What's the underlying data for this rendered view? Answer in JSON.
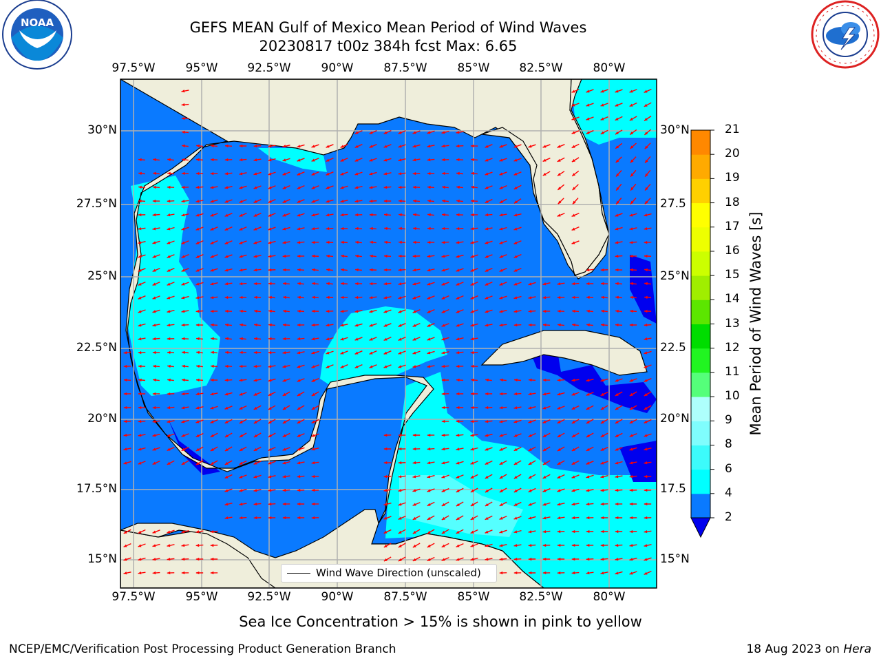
{
  "title_line1": "GEFS MEAN Gulf of Mexico Mean Period of Wind Waves",
  "title_line2": "20230817 t00z 384h fcst   Max: 6.65",
  "lon_labels": [
    "97.5°W",
    "95°W",
    "92.5°W",
    "90°W",
    "87.5°W",
    "85°W",
    "82.5°W",
    "80°W"
  ],
  "lat_labels_left": [
    "30°N",
    "27.5°N",
    "25°N",
    "22.5°N",
    "20°N",
    "17.5°N",
    "15°N"
  ],
  "lat_labels_right": [
    "30°N",
    "27.5",
    "25°N",
    "22.5",
    "20°N",
    "17.5",
    "15°N"
  ],
  "colorbar": {
    "label": "Mean Period of Wind Waves [s]",
    "ticks": [
      "2",
      "4",
      "6",
      "8",
      "9",
      "10",
      "11",
      "12",
      "13",
      "14",
      "15",
      "16",
      "17",
      "18",
      "19",
      "20",
      "21"
    ],
    "colors": [
      "#0a7aff",
      "#00ffff",
      "#3cfbfb",
      "#7ffdfd",
      "#aefffc",
      "#55ff7a",
      "#21f521",
      "#00dd00",
      "#5ce600",
      "#a0ee00",
      "#ccff00",
      "#eeff00",
      "#ffff00",
      "#ffd000",
      "#ffaa00",
      "#ff8800",
      "#ff5500",
      "#ff2800",
      "#ff0000"
    ],
    "under_color": "#0000ee"
  },
  "legend_text": "Wind Wave Direction (unscaled)",
  "subtitle": "Sea Ice Concentration > 15% is shown in pink to yellow",
  "footer_left": "NCEP/EMC/Verification Post Processing Product Generation Branch",
  "footer_right_date": "18 Aug 2023 on ",
  "footer_right_host": "Hera",
  "colors": {
    "land": "#efeedb",
    "ocean_main": "#0a7aff",
    "ocean_light": "#00ffff",
    "ocean_dark": "#0000ee",
    "arrow": "#ff0000",
    "grid": "#b0b0b0"
  },
  "logos": {
    "left": "noaa-logo",
    "right": "nws-logo"
  }
}
